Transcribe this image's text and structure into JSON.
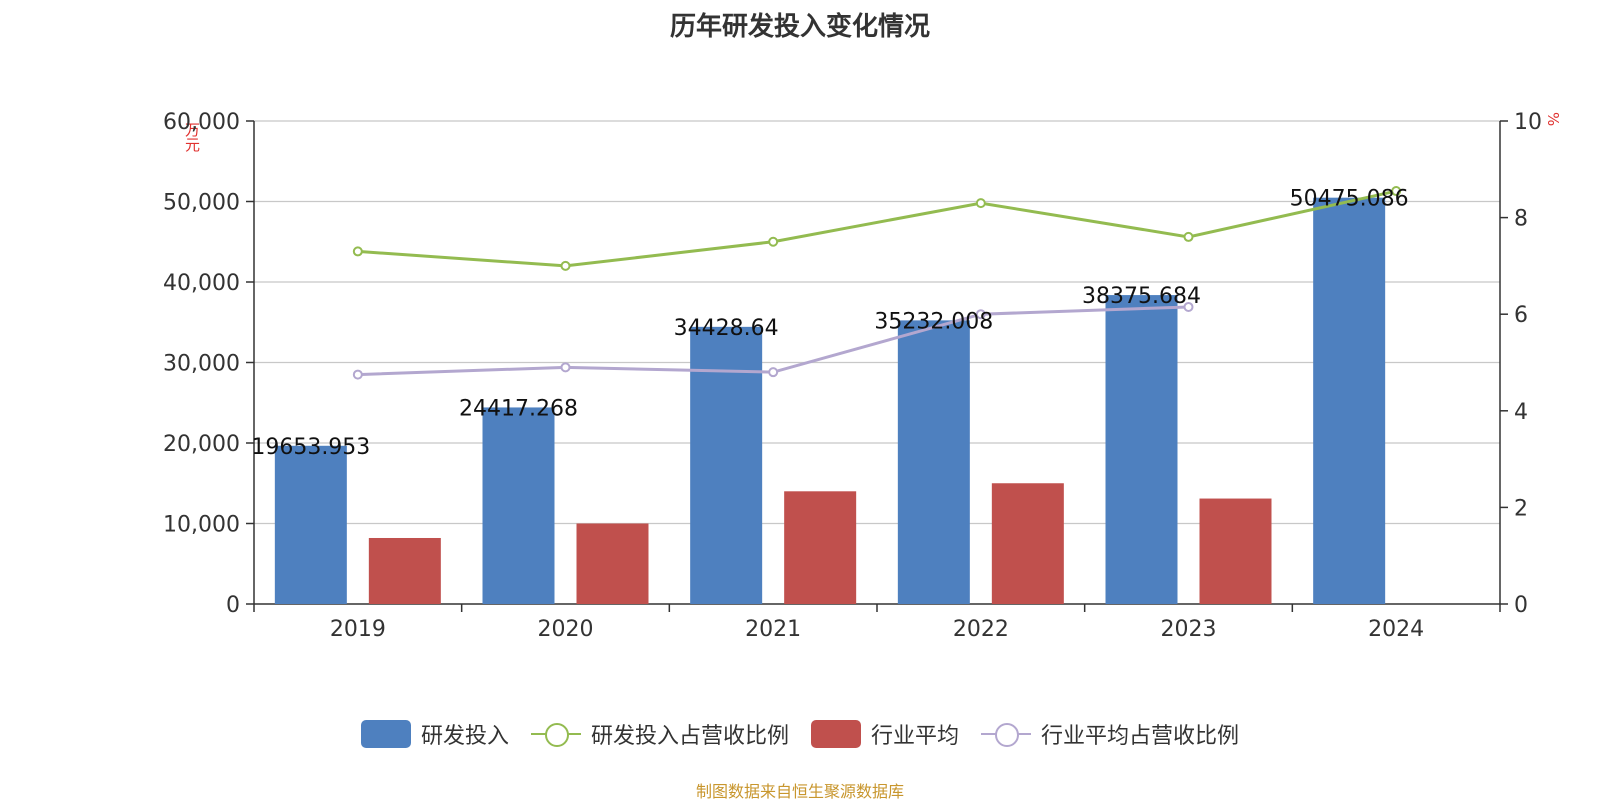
{
  "title": "历年研发投入变化情况",
  "source": "制图数据来自恒生聚源数据库",
  "chart_data": {
    "type": "bar",
    "categories": [
      "2019",
      "2020",
      "2021",
      "2022",
      "2023",
      "2024"
    ],
    "y_left": {
      "unit": "万元",
      "min": 0,
      "max": 60000,
      "ticks": [
        "0",
        "10,000",
        "20,000",
        "30,000",
        "40,000",
        "50,000",
        "60,000"
      ]
    },
    "y_right": {
      "unit": "%",
      "min": 0,
      "max": 10,
      "ticks": [
        "0",
        "2",
        "4",
        "6",
        "8",
        "10"
      ]
    },
    "grid": true,
    "legend_position": "bottom",
    "series": [
      {
        "name": "研发投入",
        "type": "bar",
        "axis": "left",
        "color": "#4e80bf",
        "values": [
          19653.953,
          24417.268,
          34428.64,
          35232.008,
          38375.684,
          50475.086
        ],
        "labels": [
          "19653.953",
          "24417.268",
          "34428.64",
          "35232.008",
          "38375.684",
          "50475.086"
        ]
      },
      {
        "name": "研发投入占营收比例",
        "type": "line",
        "axis": "right",
        "color": "#93bb50",
        "values": [
          7.3,
          7.0,
          7.5,
          8.3,
          7.6,
          8.55
        ]
      },
      {
        "name": "行业平均",
        "type": "bar",
        "axis": "left",
        "color": "#c0504d",
        "values": [
          8200,
          10000,
          14000,
          15000,
          13100,
          null
        ]
      },
      {
        "name": "行业平均占营收比例",
        "type": "line",
        "axis": "right",
        "color": "#b3a7cf",
        "values": [
          4.75,
          4.9,
          4.8,
          6.0,
          6.15,
          null
        ]
      }
    ]
  }
}
